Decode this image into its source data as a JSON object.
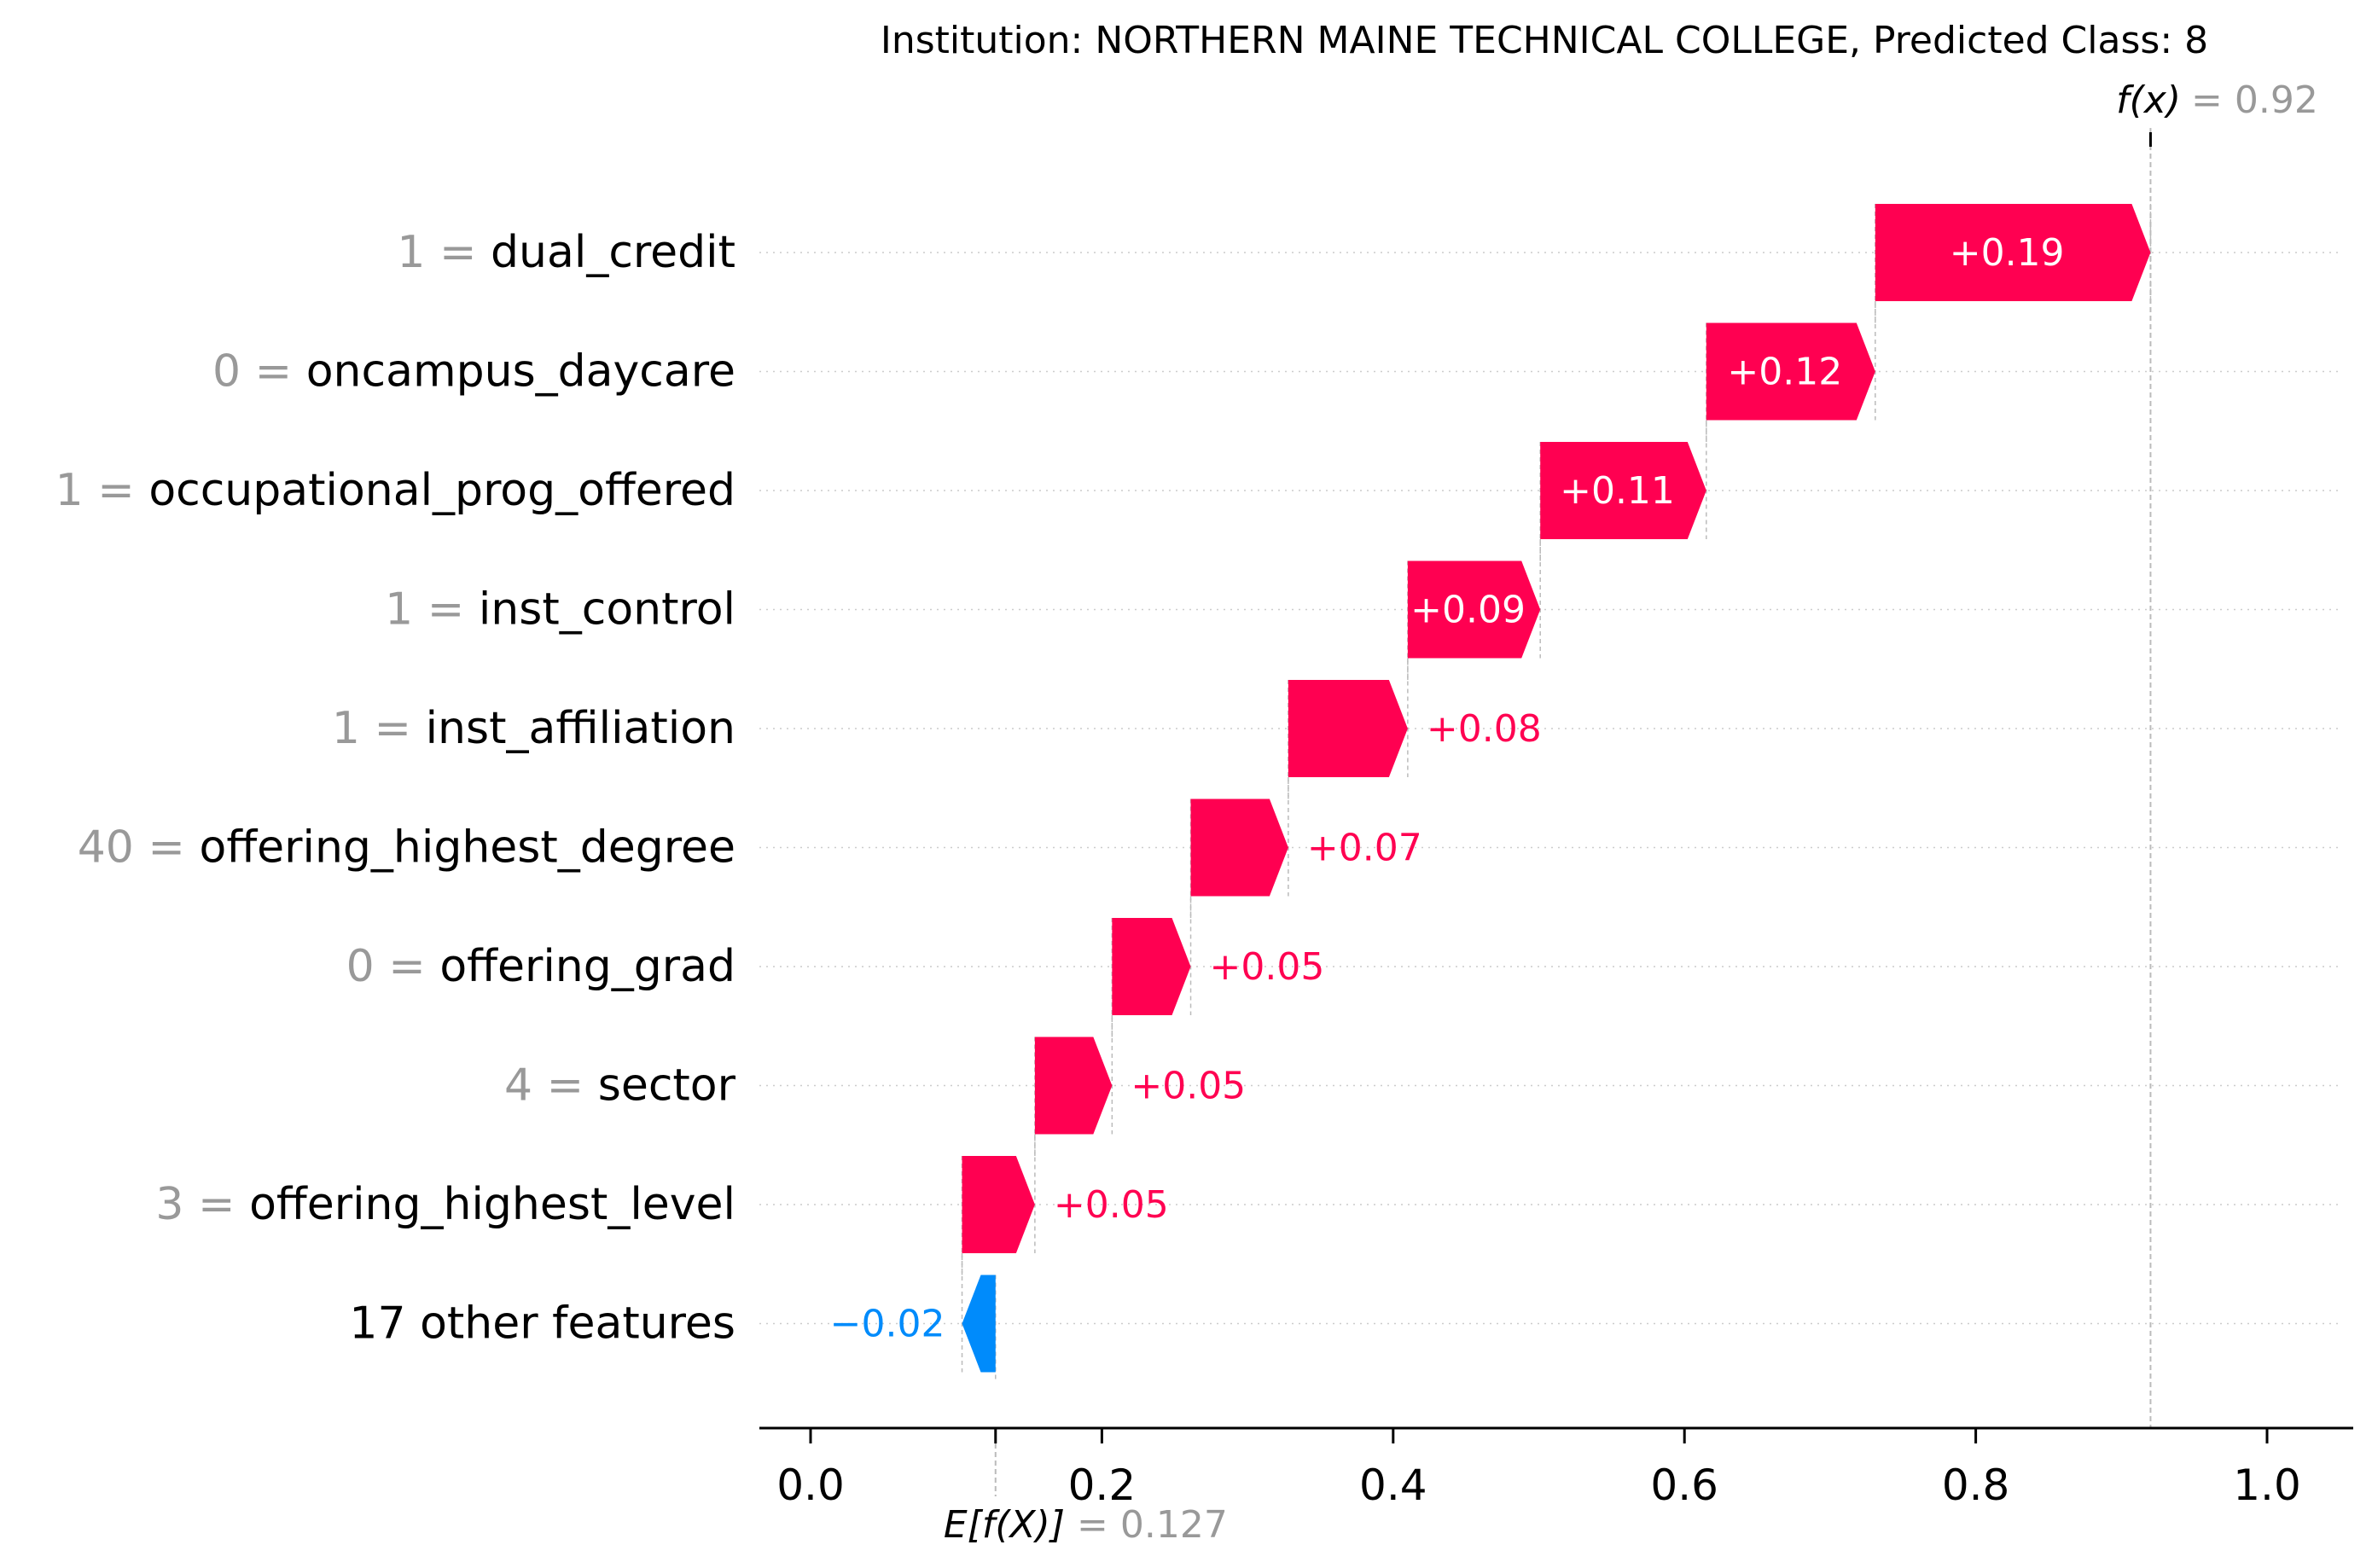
{
  "chart_data": {
    "type": "waterfall",
    "title": "Institution: NORTHERN MAINE TECHNICAL COLLEGE, Predicted Class: 8",
    "fx_label": "f(x)",
    "fx_value_text": "= 0.92",
    "fx_value": 0.92,
    "base_label": "E[f(X)]",
    "base_value_text": "= 0.127",
    "base_value": 0.127,
    "xlim": [
      -0.017,
      1.068
    ],
    "x_ticks": [
      0.0,
      0.2,
      0.4,
      0.6,
      0.8,
      1.0
    ],
    "x_tick_labels": [
      "0.0",
      "0.2",
      "0.4",
      "0.6",
      "0.8",
      "1.0"
    ],
    "features": [
      {
        "value": "1 =",
        "name": "dual_credit",
        "start": 0.731,
        "end": 0.92,
        "label": "+0.19",
        "label_inside": true
      },
      {
        "value": "0 =",
        "name": "oncampus_daycare",
        "start": 0.615,
        "end": 0.731,
        "label": "+0.12",
        "label_inside": true
      },
      {
        "value": "1 =",
        "name": "occupational_prog_offered",
        "start": 0.501,
        "end": 0.615,
        "label": "+0.11",
        "label_inside": true
      },
      {
        "value": "1 =",
        "name": "inst_control",
        "start": 0.41,
        "end": 0.501,
        "label": "+0.09",
        "label_inside": true
      },
      {
        "value": "1 =",
        "name": "inst_affiliation",
        "start": 0.328,
        "end": 0.41,
        "label": "+0.08",
        "label_inside": false
      },
      {
        "value": "40 =",
        "name": "offering_highest_degree",
        "start": 0.261,
        "end": 0.328,
        "label": "+0.07",
        "label_inside": false
      },
      {
        "value": "0 =",
        "name": "offering_grad",
        "start": 0.207,
        "end": 0.261,
        "label": "+0.05",
        "label_inside": false
      },
      {
        "value": "4 =",
        "name": "sector",
        "start": 0.154,
        "end": 0.207,
        "label": "+0.05",
        "label_inside": false
      },
      {
        "value": "3 =",
        "name": "offering_highest_level",
        "start": 0.104,
        "end": 0.154,
        "label": "+0.05",
        "label_inside": false
      },
      {
        "value": "",
        "name": "17 other features",
        "start": 0.127,
        "end": 0.104,
        "label": "−0.02",
        "label_inside": false
      }
    ],
    "colors": {
      "positive": "#ff0051",
      "negative": "#008bfb",
      "positive_text_outside": "#ff0051",
      "negative_text_outside": "#008bfb",
      "inside_text": "#ffffff",
      "value_text": "#999999",
      "axis": "#000000",
      "guide": "#bbbbbb"
    }
  }
}
